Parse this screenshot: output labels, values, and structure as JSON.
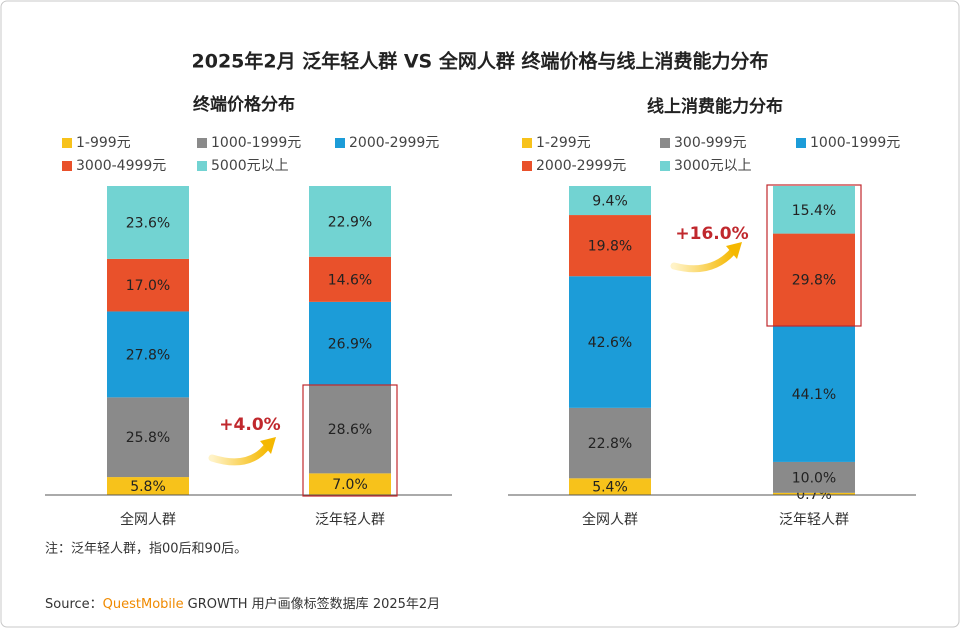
{
  "title": "2025年2月 泛年轻人群 VS 全网人群 终端价格与线上消费能力分布",
  "chart_data": [
    {
      "type": "stacked-bar",
      "title": "终端价格分布",
      "annotation": "+4.0%",
      "categories": [
        "全网人群",
        "泛年轻人群"
      ],
      "ylim": [
        0,
        100
      ],
      "series": [
        {
          "name": "1-999元",
          "color": "#f7c21b",
          "values": [
            5.8,
            7.0
          ],
          "value_labels": [
            "5.8%",
            "7.0%"
          ]
        },
        {
          "name": "1000-1999元",
          "color": "#8a8a8a",
          "values": [
            25.8,
            28.6
          ],
          "value_labels": [
            "25.8%",
            "28.6%"
          ]
        },
        {
          "name": "2000-2999元",
          "color": "#1c9cd8",
          "values": [
            27.8,
            26.9
          ],
          "value_labels": [
            "27.8%",
            "26.9%"
          ]
        },
        {
          "name": "3000-4999元",
          "color": "#e9512b",
          "values": [
            17.0,
            14.6
          ],
          "value_labels": [
            "17.0%",
            "14.6%"
          ]
        },
        {
          "name": "5000元以上",
          "color": "#72d3d2",
          "values": [
            23.6,
            22.9
          ],
          "value_labels": [
            "23.6%",
            "22.9%"
          ]
        }
      ]
    },
    {
      "type": "stacked-bar",
      "title": "线上消费能力分布",
      "annotation": "+16.0%",
      "categories": [
        "全网人群",
        "泛年轻人群"
      ],
      "ylim": [
        0,
        100
      ],
      "series": [
        {
          "name": "1-299元",
          "color": "#f7c21b",
          "values": [
            5.4,
            0.7
          ],
          "value_labels": [
            "5.4%",
            "0.7%"
          ]
        },
        {
          "name": "300-999元",
          "color": "#8a8a8a",
          "values": [
            22.8,
            10.0
          ],
          "value_labels": [
            "22.8%",
            "10.0%"
          ]
        },
        {
          "name": "1000-1999元",
          "color": "#1c9cd8",
          "values": [
            42.6,
            44.1
          ],
          "value_labels": [
            "42.6%",
            "44.1%"
          ]
        },
        {
          "name": "2000-2999元",
          "color": "#e9512b",
          "values": [
            19.8,
            29.8
          ],
          "value_labels": [
            "19.8%",
            "29.8%"
          ]
        },
        {
          "name": "3000元以上",
          "color": "#72d3d2",
          "values": [
            9.4,
            15.4
          ],
          "value_labels": [
            "9.4%",
            "15.4%"
          ]
        }
      ]
    }
  ],
  "note": "注：泛年轻人群，指00后和90后。",
  "source": {
    "label": "Source：",
    "brand": "QuestMobile",
    "text": "GROWTH 用户画像标签数据库 2025年2月"
  }
}
